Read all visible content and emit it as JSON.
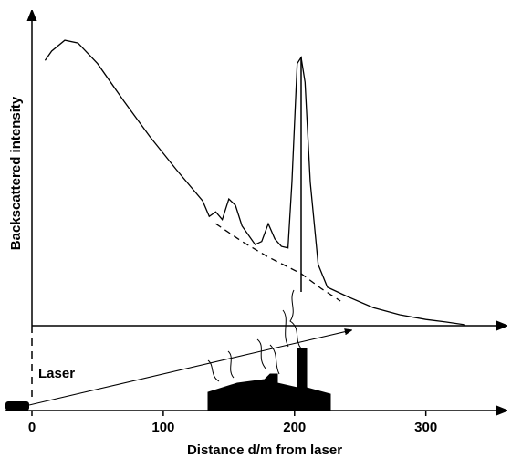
{
  "chart_data": {
    "type": "line",
    "xlabel": "Distance d/m from laser",
    "ylabel": "Backscattered intensity",
    "annotation": "Laser",
    "xlim": [
      0,
      360
    ],
    "xticks": [
      0,
      100,
      200,
      300
    ],
    "ylim": [
      0,
      100
    ],
    "series": [
      {
        "color": "#000000",
        "style": "solid",
        "x": [
          10,
          15,
          25,
          35,
          50,
          70,
          90,
          110,
          130,
          135,
          140,
          145,
          150,
          155,
          160,
          170,
          175,
          180,
          185,
          190,
          195,
          198,
          202,
          205,
          208,
          212,
          218,
          225,
          240,
          260,
          280,
          300,
          315,
          330
        ],
        "values": [
          85,
          88,
          91.5,
          90.6,
          84,
          72,
          60.5,
          50,
          40,
          35,
          36.5,
          34,
          40.6,
          38.6,
          32,
          26,
          27,
          32.7,
          27.8,
          25.4,
          24.9,
          45.9,
          84,
          86,
          78,
          46,
          19.6,
          12.3,
          9.4,
          5.8,
          3.5,
          2,
          1.2,
          0.3
        ]
      },
      {
        "color": "#000000",
        "style": "dashed",
        "x": [
          140,
          160,
          180,
          205,
          220,
          235
        ],
        "values": [
          32.7,
          27,
          22,
          16.7,
          12,
          7.9
        ]
      }
    ]
  }
}
